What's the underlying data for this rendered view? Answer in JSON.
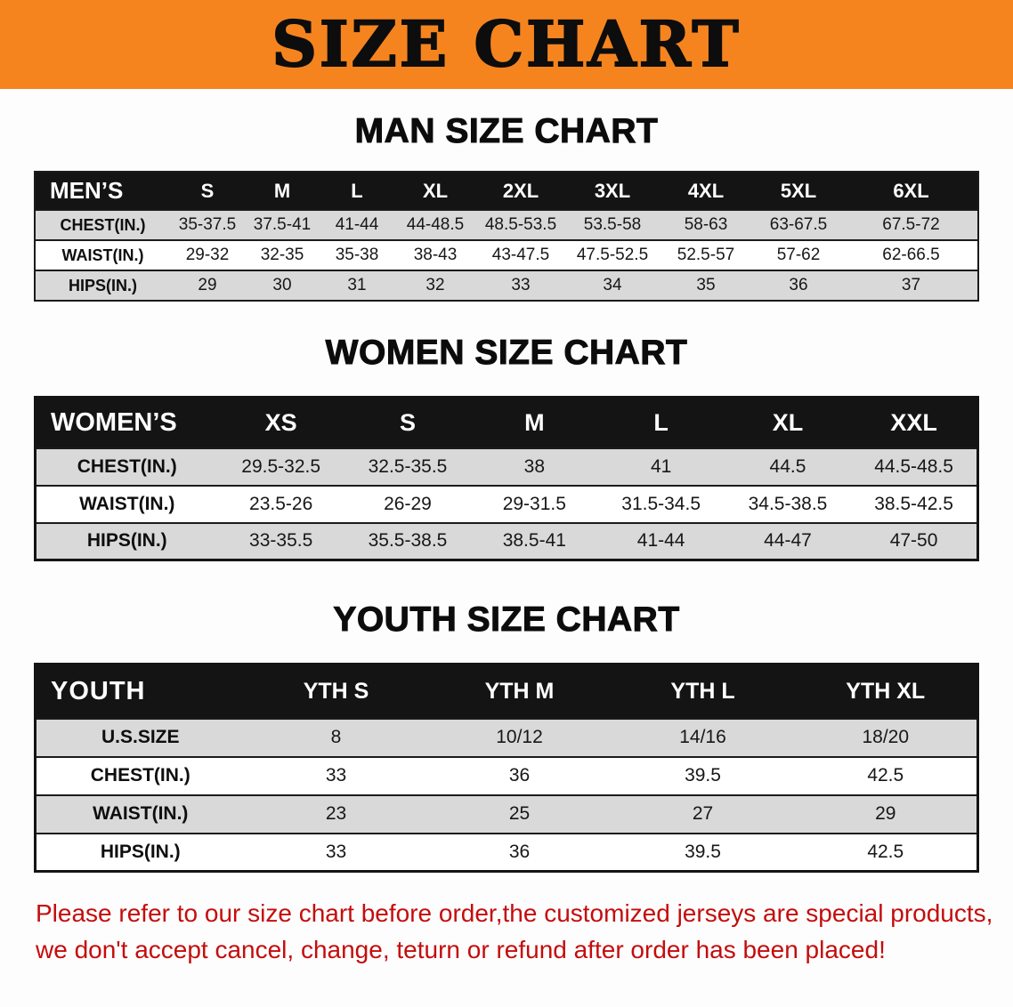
{
  "banner": {
    "title": "SIZE CHART"
  },
  "colors": {
    "banner_bg": "#f5841f",
    "header_bg": "#141414",
    "row_gray": "#d9d9d9",
    "notice_red": "#c40d0d"
  },
  "sections": [
    {
      "id": "men",
      "heading": "MAN SIZE CHART",
      "table": {
        "corner_label": "MEN’S",
        "columns": [
          "S",
          "M",
          "L",
          "XL",
          "2XL",
          "3XL",
          "4XL",
          "5XL",
          "6XL"
        ],
        "rows": [
          {
            "label": "CHEST(IN.)",
            "values": [
              "35-37.5",
              "37.5-41",
              "41-44",
              "44-48.5",
              "48.5-53.5",
              "53.5-58",
              "58-63",
              "63-67.5",
              "67.5-72"
            ]
          },
          {
            "label": "WAIST(IN.)",
            "values": [
              "29-32",
              "32-35",
              "35-38",
              "38-43",
              "43-47.5",
              "47.5-52.5",
              "52.5-57",
              "57-62",
              "62-66.5"
            ]
          },
          {
            "label": "HIPS(IN.)",
            "values": [
              "29",
              "30",
              "31",
              "32",
              "33",
              "34",
              "35",
              "36",
              "37"
            ]
          }
        ]
      }
    },
    {
      "id": "women",
      "heading": "WOMEN SIZE CHART",
      "table": {
        "corner_label": "WOMEN’S",
        "columns": [
          "XS",
          "S",
          "M",
          "L",
          "XL",
          "XXL"
        ],
        "rows": [
          {
            "label": "CHEST(IN.)",
            "values": [
              "29.5-32.5",
              "32.5-35.5",
              "38",
              "41",
              "44.5",
              "44.5-48.5"
            ]
          },
          {
            "label": "WAIST(IN.)",
            "values": [
              "23.5-26",
              "26-29",
              "29-31.5",
              "31.5-34.5",
              "34.5-38.5",
              "38.5-42.5"
            ]
          },
          {
            "label": "HIPS(IN.)",
            "values": [
              "33-35.5",
              "35.5-38.5",
              "38.5-41",
              "41-44",
              "44-47",
              "47-50"
            ]
          }
        ]
      }
    },
    {
      "id": "youth",
      "heading": "YOUTH SIZE CHART",
      "table": {
        "corner_label": "YOUTH",
        "columns": [
          "YTH S",
          "YTH M",
          "YTH L",
          "YTH XL"
        ],
        "rows": [
          {
            "label": "U.S.SIZE",
            "values": [
              "8",
              "10/12",
              "14/16",
              "18/20"
            ]
          },
          {
            "label": "CHEST(IN.)",
            "values": [
              "33",
              "36",
              "39.5",
              "42.5"
            ]
          },
          {
            "label": "WAIST(IN.)",
            "values": [
              "23",
              "25",
              "27",
              "29"
            ]
          },
          {
            "label": "HIPS(IN.)",
            "values": [
              "33",
              "36",
              "39.5",
              "42.5"
            ]
          }
        ]
      }
    }
  ],
  "notice": {
    "line1": "Please refer to our size chart before order,the customized jerseys are special products,",
    "line2": "we don't accept cancel, change, teturn or refund after order has been placed!"
  }
}
